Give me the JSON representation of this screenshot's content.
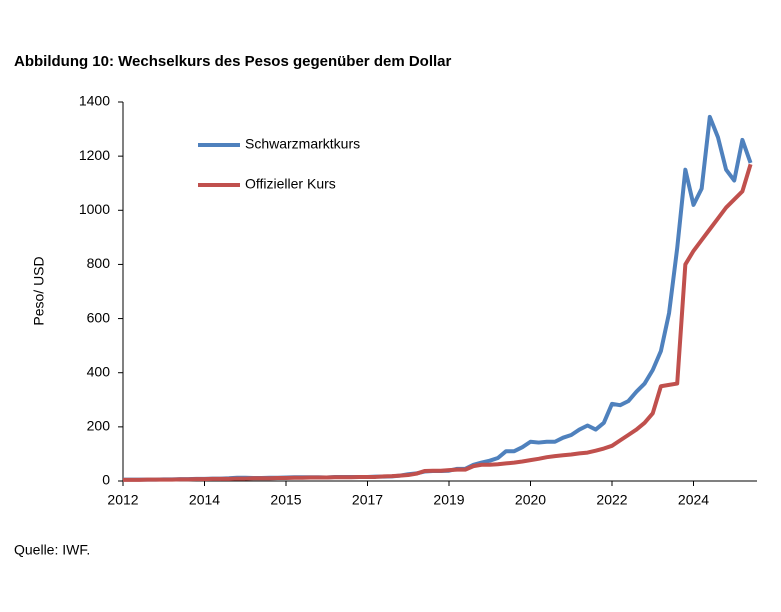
{
  "chart_data": {
    "type": "line",
    "title": "Abbildung 10: Wechselkurs des Pesos gegenüber dem Dollar",
    "y_label": "Peso/ USD",
    "source": "Quelle: IWF.",
    "categories": [
      "2012",
      null,
      null,
      null,
      null,
      null,
      null,
      null,
      null,
      null,
      "2014",
      null,
      null,
      null,
      null,
      null,
      null,
      null,
      null,
      null,
      "2015",
      null,
      null,
      null,
      null,
      null,
      null,
      null,
      null,
      null,
      "2017",
      null,
      null,
      null,
      null,
      null,
      null,
      null,
      null,
      null,
      "2019",
      null,
      null,
      null,
      null,
      null,
      null,
      null,
      null,
      null,
      "2020",
      null,
      null,
      null,
      null,
      null,
      null,
      null,
      null,
      null,
      "2022",
      null,
      null,
      null,
      null,
      null,
      null,
      null,
      null,
      null,
      "2024",
      null,
      null,
      null,
      null,
      null,
      null,
      null
    ],
    "series": [
      {
        "name": "Schwarzmarktkurs",
        "color": "#4f81bd",
        "values": [
          5,
          5,
          5,
          5,
          5,
          6,
          6,
          7,
          7,
          8,
          8,
          9,
          9,
          10,
          12,
          12,
          11,
          11,
          12,
          12,
          13,
          14,
          14,
          14,
          14,
          13,
          15,
          15,
          15,
          15,
          15,
          16,
          16,
          17,
          20,
          25,
          28,
          35,
          37,
          37,
          38,
          45,
          45,
          60,
          68,
          75,
          85,
          110,
          110,
          125,
          145,
          142,
          145,
          145,
          160,
          170,
          190,
          205,
          190,
          215,
          285,
          280,
          295,
          330,
          360,
          410,
          480,
          620,
          860,
          1150,
          1020,
          1080,
          1345,
          1270,
          1150,
          1110,
          1260,
          1175
        ]
      },
      {
        "name": "Offizieller Kurs",
        "color": "#c0504d",
        "values": [
          4,
          4,
          4,
          5,
          5,
          5,
          5,
          6,
          6,
          7,
          7,
          8,
          8,
          8,
          9,
          9,
          10,
          10,
          10,
          11,
          11,
          12,
          12,
          13,
          13,
          13,
          14,
          14,
          14,
          15,
          15,
          15,
          17,
          18,
          20,
          22,
          27,
          37,
          38,
          38,
          40,
          42,
          42,
          55,
          60,
          60,
          62,
          65,
          68,
          72,
          77,
          82,
          88,
          92,
          95,
          98,
          102,
          105,
          112,
          120,
          130,
          150,
          170,
          190,
          215,
          250,
          350,
          355,
          360,
          800,
          850,
          890,
          930,
          970,
          1010,
          1040,
          1070,
          1170
        ]
      }
    ],
    "ylim": [
      0,
      1400
    ],
    "yticks": [
      0,
      200,
      400,
      600,
      800,
      1000,
      1200,
      1400
    ],
    "grid": false
  }
}
